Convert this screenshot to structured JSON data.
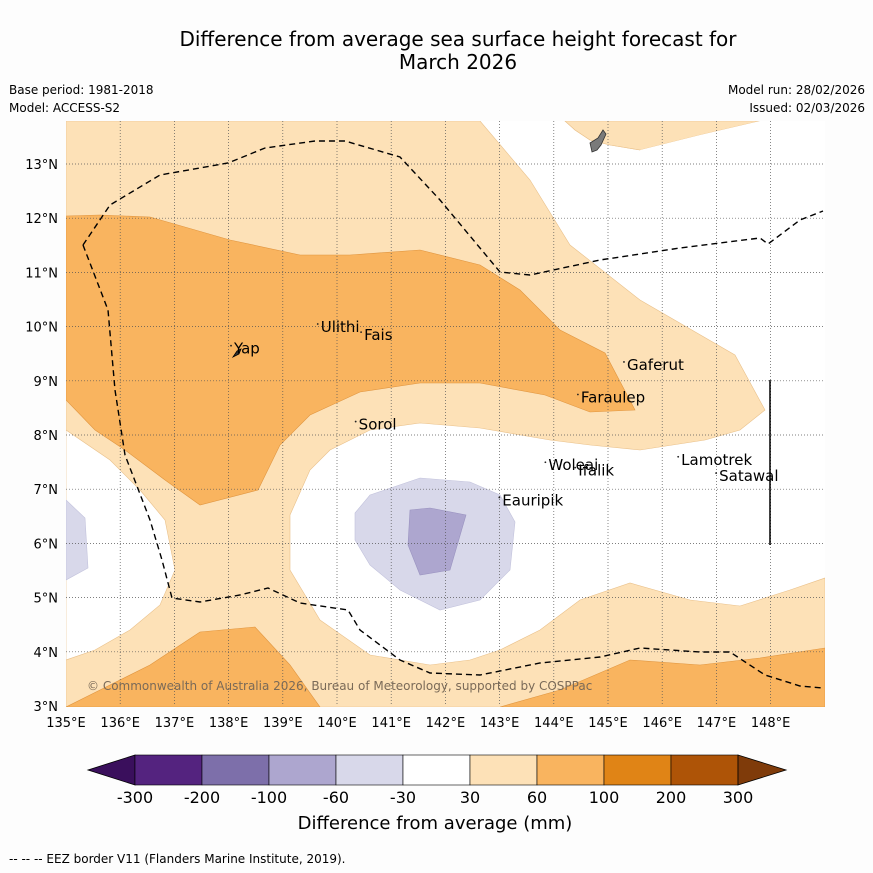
{
  "title": {
    "line1": "Difference from average sea surface height forecast for",
    "line2": "March 2026"
  },
  "meta": {
    "base_period": "Base period: 1981-2018",
    "model": "Model: ACCESS-S2",
    "model_run": "Model run: 28/02/2026",
    "issued": "Issued: 02/03/2026"
  },
  "map": {
    "lon_labels": [
      "135°E",
      "136°E",
      "137°E",
      "138°E",
      "139°E",
      "140°E",
      "141°E",
      "142°E",
      "143°E",
      "144°E",
      "145°E",
      "146°E",
      "147°E",
      "148°E"
    ],
    "lat_labels": [
      "3°N",
      "4°N",
      "5°N",
      "6°N",
      "7°N",
      "8°N",
      "9°N",
      "10°N",
      "11°N",
      "12°N",
      "13°N"
    ],
    "lon_range": [
      135,
      149
    ],
    "lat_range": [
      3,
      13.8
    ],
    "islands": [
      {
        "name": "Yap",
        "lon": 138.1,
        "lat": 9.5
      },
      {
        "name": "Ulithi",
        "lon": 139.7,
        "lat": 9.9
      },
      {
        "name": "Fais",
        "lon": 140.5,
        "lat": 9.75
      },
      {
        "name": "Sorol",
        "lon": 140.4,
        "lat": 8.1
      },
      {
        "name": "Gaferut",
        "lon": 145.35,
        "lat": 9.2
      },
      {
        "name": "Faraulep",
        "lon": 144.5,
        "lat": 8.6
      },
      {
        "name": "Woleai",
        "lon": 143.9,
        "lat": 7.35
      },
      {
        "name": "Ifalik",
        "lon": 144.45,
        "lat": 7.25
      },
      {
        "name": "Lamotrek",
        "lon": 146.35,
        "lat": 7.45
      },
      {
        "name": "Satawal",
        "lon": 147.05,
        "lat": 7.15
      },
      {
        "name": "Eauripik",
        "lon": 143.05,
        "lat": 6.7
      }
    ],
    "copyright": "© Commonwealth of Australia 2026, Bureau of Meteorology, supported by COSPPac"
  },
  "colorbar": {
    "ticks": [
      "-300",
      "-200",
      "-100",
      "-60",
      "-30",
      "30",
      "60",
      "100",
      "200",
      "300"
    ],
    "colors": [
      "#3a0f5c",
      "#54237f",
      "#7d6faa",
      "#ada6cf",
      "#d8d8ea",
      "#ffffff",
      "#fde1b7",
      "#f9b45f",
      "#e08416",
      "#ae5407",
      "#7f3b0a"
    ],
    "label": "Difference from average (mm)"
  },
  "footnote": "--  --  -- EEZ border V11 (Flanders Marine Institute, 2019)."
}
